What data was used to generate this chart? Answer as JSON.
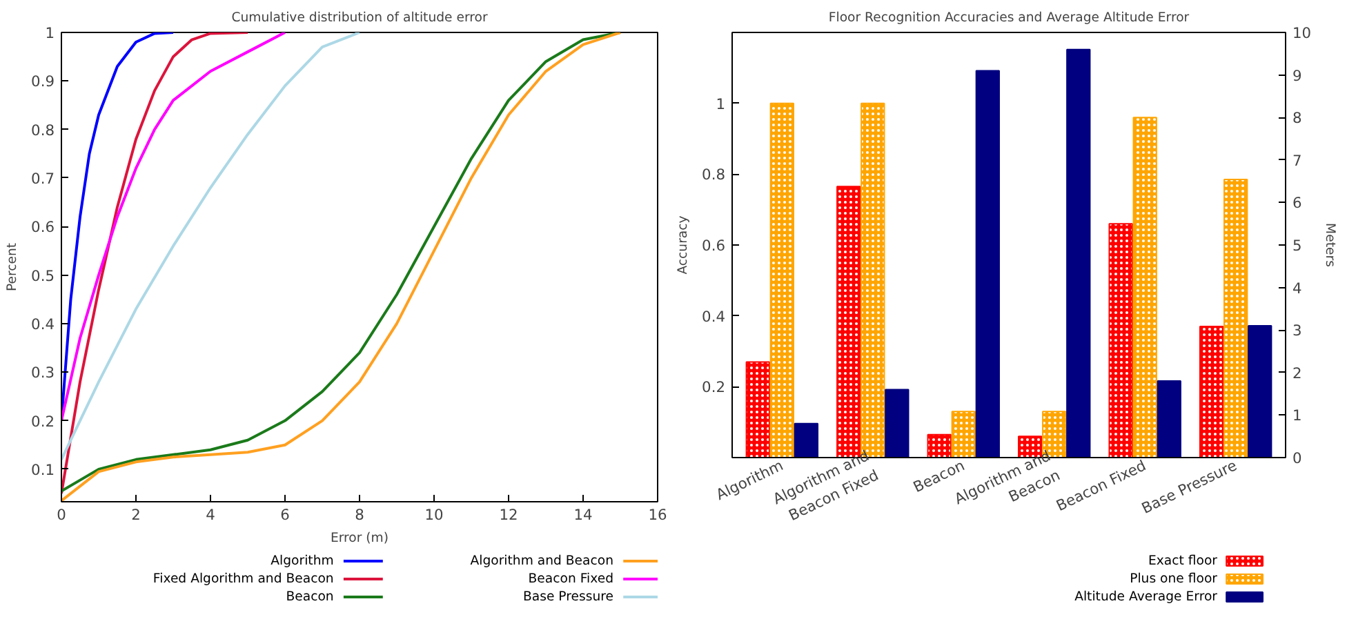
{
  "chart_data": [
    {
      "type": "line",
      "title": "Cumulative distribution of altitude error",
      "xlabel": "Error (m)",
      "ylabel": "Percent",
      "xlim": [
        0,
        16
      ],
      "xticks": [
        0,
        2,
        4,
        6,
        8,
        10,
        12,
        14,
        16
      ],
      "ylim": [
        0.033,
        1
      ],
      "yticks": [
        0.1,
        0.2,
        0.3,
        0.4,
        0.5,
        0.6,
        0.7,
        0.8,
        0.9,
        1
      ],
      "grid": false,
      "legend": "bottom",
      "series": [
        {
          "name": "Algorithm",
          "color": "#0000ff",
          "x": [
            0,
            0.25,
            0.5,
            0.75,
            1,
            1.5,
            2,
            2.5,
            3
          ],
          "values": [
            0.2,
            0.45,
            0.62,
            0.75,
            0.83,
            0.93,
            0.98,
            0.998,
            1
          ]
        },
        {
          "name": "Fixed Algorithm and Beacon",
          "color": "#dc143c",
          "x": [
            0,
            0.5,
            1,
            1.5,
            2,
            2.5,
            3,
            3.5,
            4,
            5
          ],
          "values": [
            0.05,
            0.28,
            0.47,
            0.64,
            0.78,
            0.88,
            0.95,
            0.985,
            0.998,
            1
          ]
        },
        {
          "name": "Beacon",
          "color": "#1a7a1a",
          "x": [
            0,
            1,
            2,
            3,
            4,
            5,
            6,
            7,
            8,
            9,
            10,
            11,
            12,
            13,
            14,
            15
          ],
          "values": [
            0.055,
            0.1,
            0.12,
            0.13,
            0.14,
            0.16,
            0.2,
            0.26,
            0.34,
            0.46,
            0.6,
            0.74,
            0.86,
            0.94,
            0.985,
            1
          ]
        },
        {
          "name": "Algorithm and Beacon",
          "color": "#ffa020",
          "x": [
            0,
            1,
            2,
            3,
            4,
            5,
            6,
            7,
            8,
            9,
            10,
            11,
            12,
            13,
            14,
            15
          ],
          "values": [
            0.035,
            0.095,
            0.115,
            0.125,
            0.13,
            0.135,
            0.15,
            0.2,
            0.28,
            0.4,
            0.55,
            0.7,
            0.83,
            0.92,
            0.975,
            1
          ]
        },
        {
          "name": "Beacon Fixed",
          "color": "#ff00ff",
          "x": [
            0,
            0.5,
            1,
            1.5,
            2,
            2.5,
            3,
            4,
            5,
            6
          ],
          "values": [
            0.2,
            0.37,
            0.5,
            0.62,
            0.72,
            0.8,
            0.86,
            0.92,
            0.96,
            1
          ]
        },
        {
          "name": "Base Pressure",
          "color": "#add8e6",
          "x": [
            0,
            1,
            2,
            3,
            4,
            5,
            6,
            7,
            8
          ],
          "values": [
            0.12,
            0.28,
            0.43,
            0.56,
            0.68,
            0.79,
            0.89,
            0.97,
            1
          ]
        }
      ]
    },
    {
      "type": "bar",
      "title": "Floor Recognition Accuracies and Average Altitude Error",
      "ylabel": "Accuracy",
      "y2label": "Meters",
      "categories": [
        "Algorithm",
        "Algorithm and\nBeacon Fixed",
        "Beacon",
        "Algorithm and\nBeacon",
        "Beacon Fixed",
        "Base Pressure"
      ],
      "ylim": [
        0,
        1.2
      ],
      "yticks": [
        0.2,
        0.4,
        0.6,
        0.8,
        1
      ],
      "y2lim": [
        0,
        10
      ],
      "y2ticks": [
        0,
        1,
        2,
        3,
        4,
        5,
        6,
        7,
        8,
        9,
        10
      ],
      "grid": false,
      "legend": "bottom right",
      "series": [
        {
          "name": "Exact floor",
          "color": "#ff0000",
          "values": [
            0.27,
            0.765,
            0.065,
            0.06,
            0.66,
            0.37
          ]
        },
        {
          "name": "Plus one floor",
          "color": "#ffa500",
          "values": [
            1.0,
            1.0,
            0.13,
            0.13,
            0.96,
            0.785
          ]
        },
        {
          "name": "Altitude Average Error",
          "color": "#000080",
          "axis": "y2",
          "values": [
            0.8,
            1.6,
            9.1,
            9.6,
            1.8,
            3.1
          ]
        }
      ]
    }
  ]
}
